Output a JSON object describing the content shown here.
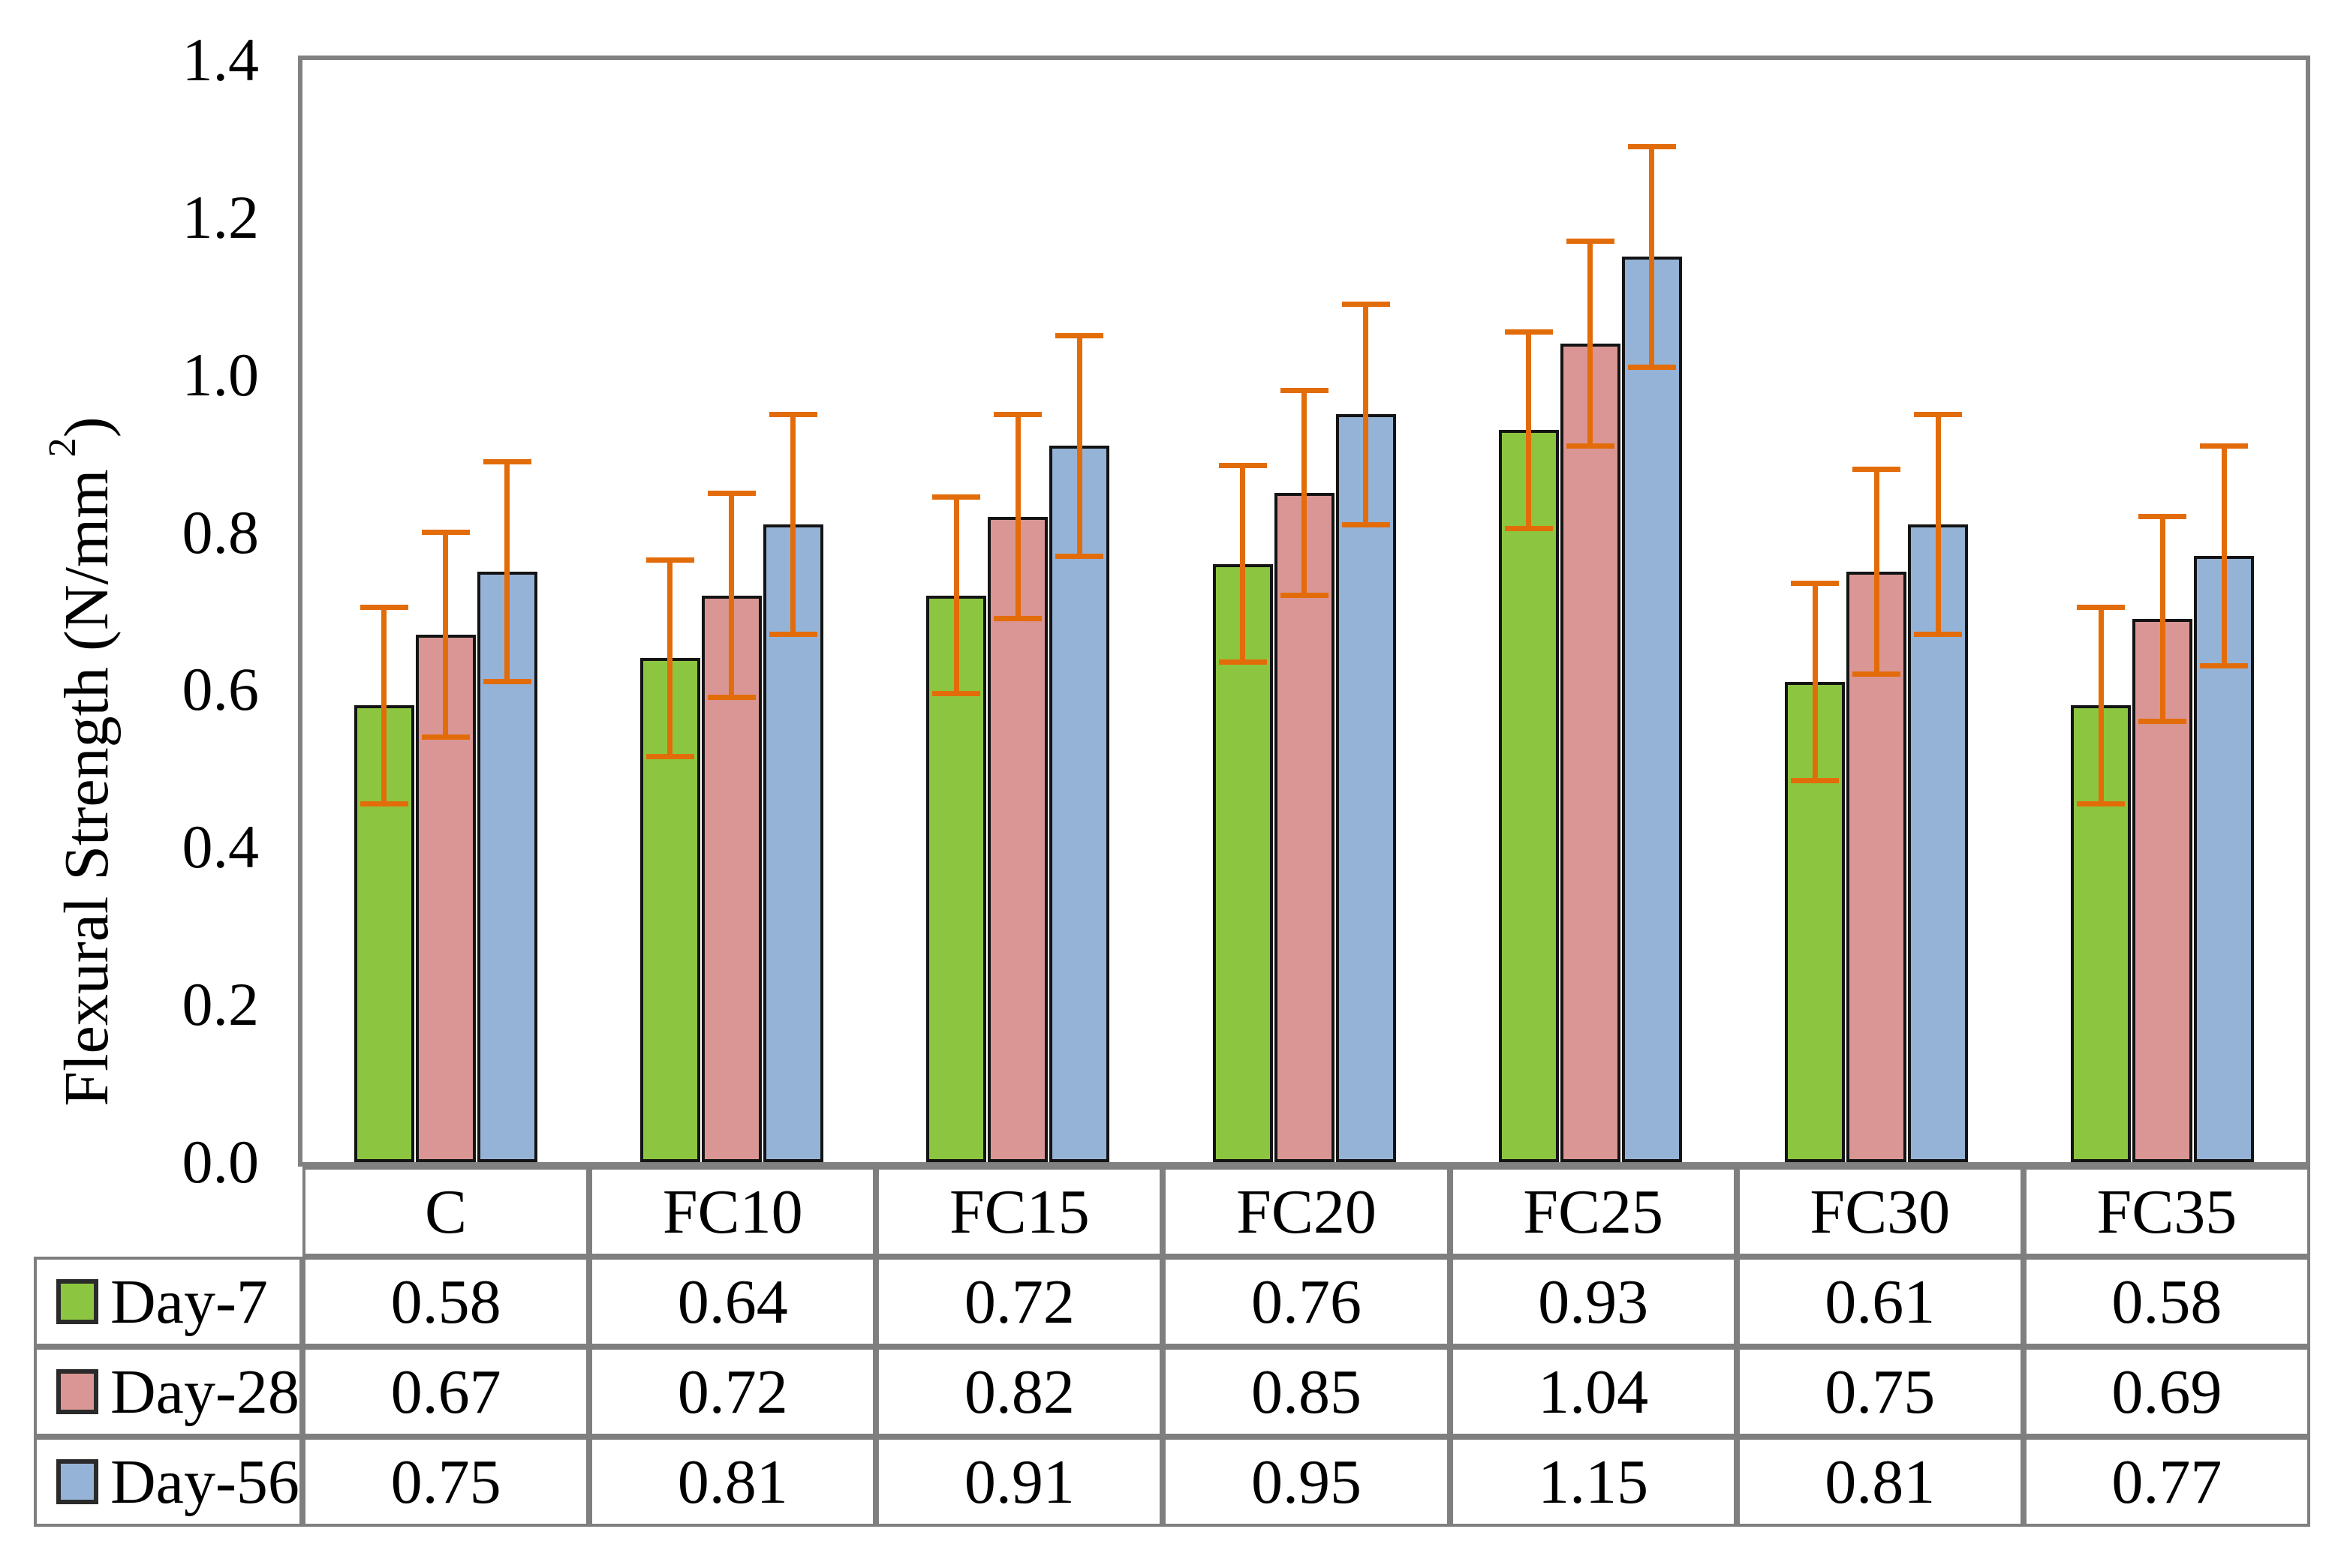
{
  "chart_data": {
    "type": "bar",
    "title": "",
    "xlabel": "",
    "ylabel": "Flexural Strength (N/mm²)",
    "ylabel_prefix": "Flexural Strength (N/mm",
    "ylabel_sup": "2",
    "ylabel_suffix": ")",
    "categories": [
      "C",
      "FC10",
      "FC15",
      "FC20",
      "FC25",
      "FC30",
      "FC35"
    ],
    "series": [
      {
        "name": "Day-7",
        "color": "#8CC640",
        "error": 0.125,
        "values": [
          0.58,
          0.64,
          0.72,
          0.76,
          0.93,
          0.61,
          0.58
        ]
      },
      {
        "name": "Day-28",
        "color": "#D99694",
        "error": 0.13,
        "values": [
          0.67,
          0.72,
          0.82,
          0.85,
          1.04,
          0.75,
          0.69
        ]
      },
      {
        "name": "Day-56",
        "color": "#95B3D7",
        "error": 0.14,
        "values": [
          0.75,
          0.81,
          0.91,
          0.95,
          1.15,
          0.81,
          0.77
        ]
      }
    ],
    "ylim": [
      0,
      1.4
    ],
    "ytick_labels": [
      "0.0",
      "0.2",
      "0.4",
      "0.6",
      "0.8",
      "1.0",
      "1.2",
      "1.4"
    ],
    "grid": false,
    "legend_position": "table-left",
    "error_bar_color": "#E36C0A",
    "bar_border_color": "#141414",
    "plot_border_color": "#818181",
    "table_border_color": "#7F7F7F"
  }
}
